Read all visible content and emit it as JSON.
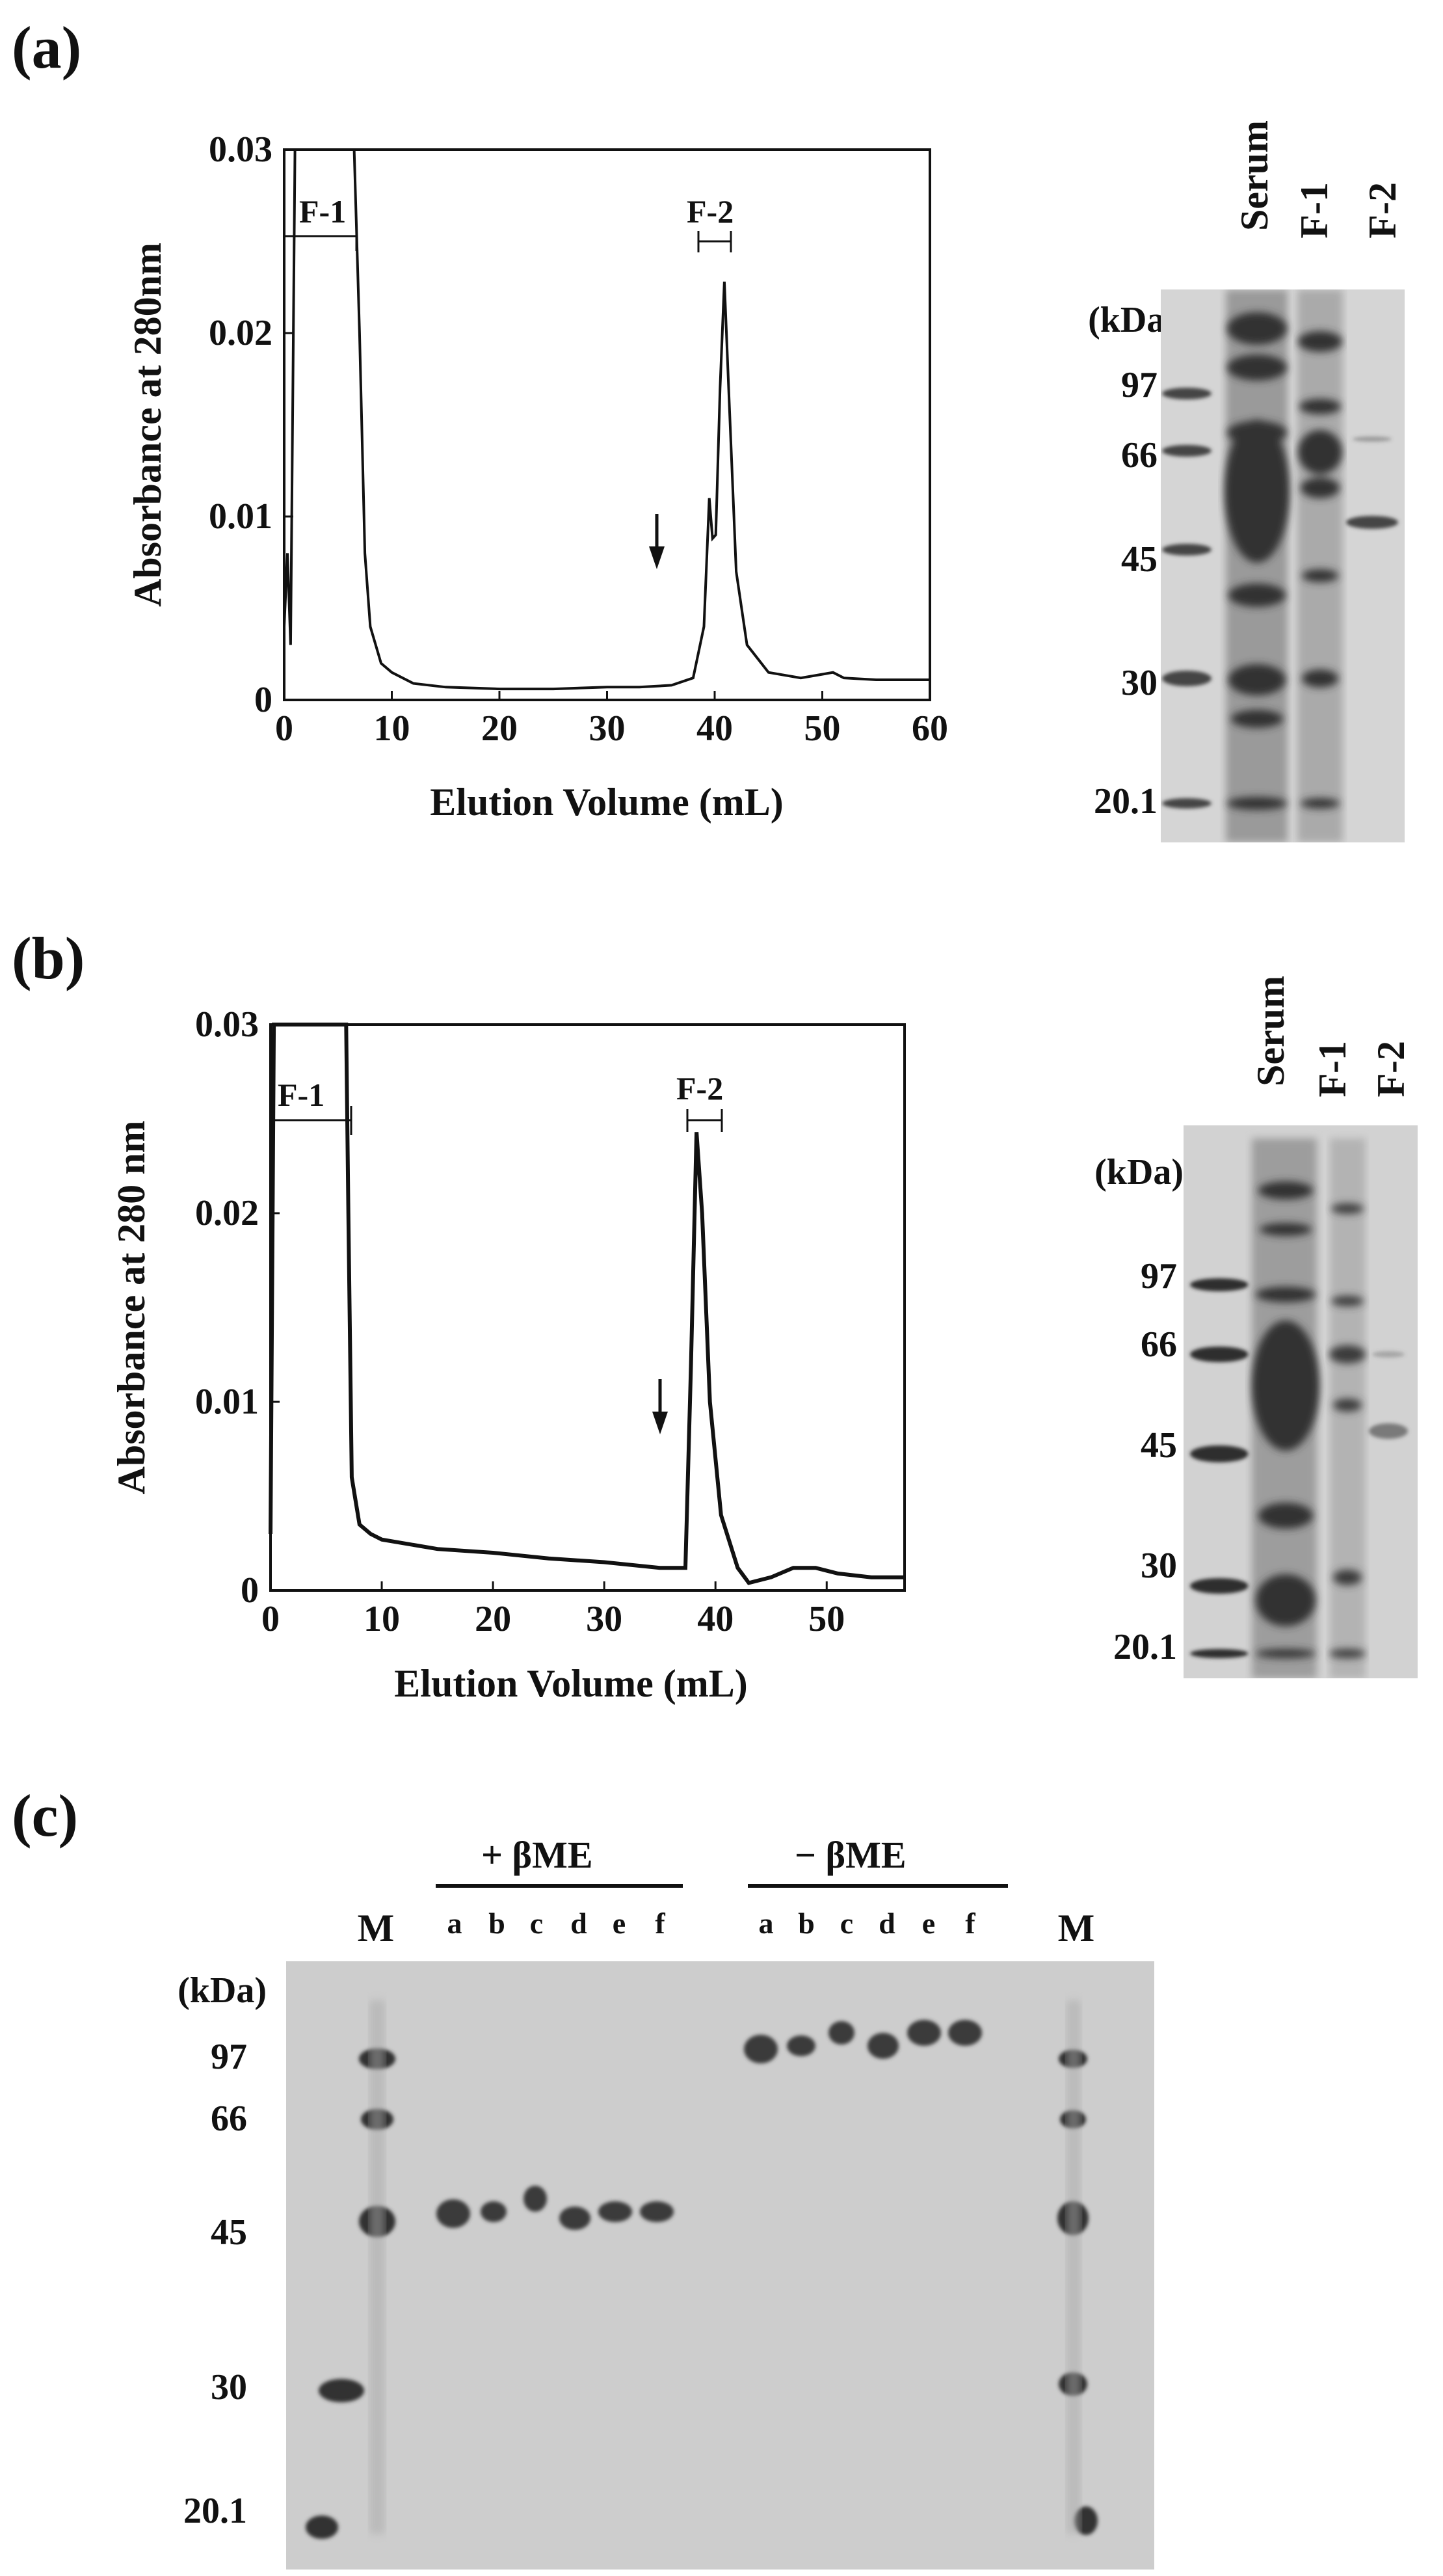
{
  "panels": {
    "a": {
      "label": "(a)",
      "chart_data": {
        "type": "line",
        "xlabel": "Elution Volume (mL)",
        "ylabel": "Absorbance at 280nm",
        "xlim": [
          0,
          60
        ],
        "ylim": [
          0,
          0.03
        ],
        "xticks": [
          "0",
          "10",
          "20",
          "30",
          "40",
          "50",
          "60"
        ],
        "yticks": [
          "0",
          "0.01",
          "0.02",
          "0.03"
        ],
        "annotations": [
          "F-1",
          "F-2"
        ],
        "arrow_at_x": 35,
        "series": [
          {
            "x": [
              0,
              0.3,
              0.6,
              1.0,
              1.5,
              6.5,
              7.0,
              7.5,
              8.0,
              9.0,
              10,
              12,
              15,
              20,
              25,
              30,
              33,
              36,
              38,
              39,
              39.5,
              39.8,
              40.1,
              40.5,
              40.9,
              41.3,
              42,
              43,
              45,
              48,
              51,
              52,
              55,
              60
            ],
            "y": [
              0.004,
              0.008,
              0.003,
              0.03,
              0.03,
              0.03,
              0.02,
              0.008,
              0.004,
              0.002,
              0.0015,
              0.0009,
              0.0007,
              0.0006,
              0.0006,
              0.0007,
              0.0007,
              0.0008,
              0.0012,
              0.004,
              0.011,
              0.0088,
              0.009,
              0.017,
              0.0228,
              0.017,
              0.007,
              0.003,
              0.0015,
              0.0012,
              0.0015,
              0.0012,
              0.0011,
              0.0011
            ]
          }
        ]
      },
      "gel": {
        "lanes": [
          "Serum",
          "F-1",
          "F-2"
        ],
        "unit": "(kDa)",
        "markers": [
          "97",
          "66",
          "45",
          "30",
          "20.1"
        ]
      }
    },
    "b": {
      "label": "(b)",
      "chart_data": {
        "type": "line",
        "xlabel": "Elution Volume (mL)",
        "ylabel": "Absorbance at 280 nm",
        "xlim": [
          0,
          57
        ],
        "ylim": [
          0,
          0.03
        ],
        "xticks": [
          "0",
          "10",
          "20",
          "30",
          "40",
          "50"
        ],
        "yticks": [
          "0",
          "0.01",
          "0.02",
          "0.03"
        ],
        "annotations": [
          "F-1",
          "F-2"
        ],
        "arrow_at_x": 35,
        "series": [
          {
            "x": [
              0,
              0.3,
              1.0,
              6.8,
              7.0,
              7.3,
              8,
              9,
              10,
              15,
              20,
              25,
              30,
              35,
              37.3,
              37.8,
              38.3,
              38.8,
              39.5,
              40.5,
              42,
              43,
              45,
              47,
              49,
              51,
              54,
              57
            ],
            "y": [
              0.003,
              0.03,
              0.03,
              0.03,
              0.02,
              0.006,
              0.0035,
              0.003,
              0.0027,
              0.0022,
              0.002,
              0.0017,
              0.0015,
              0.0012,
              0.0012,
              0.012,
              0.0243,
              0.02,
              0.01,
              0.004,
              0.0012,
              0.0004,
              0.0007,
              0.0012,
              0.0012,
              0.0009,
              0.0007,
              0.0007
            ]
          }
        ]
      },
      "gel": {
        "lanes": [
          "Serum",
          "F-1",
          "F-2"
        ],
        "unit": "(kDa)",
        "markers": [
          "97",
          "66",
          "45",
          "30",
          "20.1"
        ]
      }
    },
    "c": {
      "label": "(c)",
      "plus_bme": "+ βME",
      "minus_bme": "− βME",
      "lanes_left_marker": "M",
      "lanes_right_marker": "M",
      "lanes_plus": [
        "a",
        "b",
        "c",
        "d",
        "e",
        "f"
      ],
      "lanes_minus": [
        "a",
        "b",
        "c",
        "d",
        "e",
        "f"
      ],
      "unit": "(kDa)",
      "markers": [
        "97",
        "66",
        "45",
        "30",
        "20.1"
      ]
    }
  }
}
